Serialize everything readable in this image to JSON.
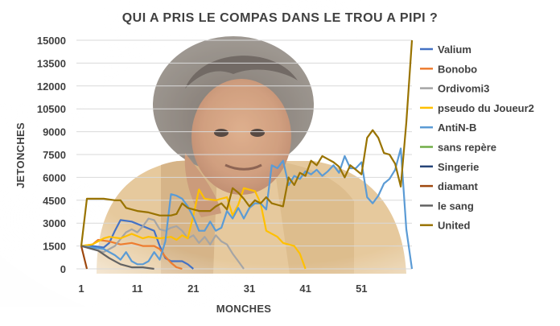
{
  "chart_data": {
    "type": "line",
    "title": "QUI A PRIS LE COMPAS DANS LE TROU A PIPI ?",
    "xlabel": "MONCHES",
    "ylabel": "JETONCHES",
    "ylim": [
      0,
      15000
    ],
    "yticks": [
      0,
      1500,
      3000,
      4500,
      6000,
      7500,
      9000,
      10500,
      12000,
      13500,
      15000
    ],
    "xlim": [
      1,
      60
    ],
    "xticks": [
      1,
      11,
      21,
      31,
      41,
      51
    ],
    "grid": "horizontal",
    "legend": "right",
    "background_image": "portrait-photo",
    "series": [
      {
        "name": "Valium",
        "color": "#4472C4",
        "points": [
          [
            1,
            1500
          ],
          [
            3,
            1500
          ],
          [
            5,
            1400
          ],
          [
            6,
            1700
          ],
          [
            7,
            2500
          ],
          [
            8,
            3200
          ],
          [
            10,
            3100
          ],
          [
            12,
            2800
          ],
          [
            14,
            2500
          ],
          [
            15,
            1500
          ],
          [
            16,
            700
          ],
          [
            17,
            500
          ],
          [
            19,
            500
          ],
          [
            20,
            300
          ],
          [
            21,
            0
          ]
        ]
      },
      {
        "name": "Bonobo",
        "color": "#ED7D31",
        "points": [
          [
            1,
            1500
          ],
          [
            3,
            1600
          ],
          [
            4,
            1900
          ],
          [
            6,
            1800
          ],
          [
            8,
            1600
          ],
          [
            10,
            1700
          ],
          [
            12,
            1500
          ],
          [
            14,
            1500
          ],
          [
            15,
            1300
          ],
          [
            16,
            800
          ],
          [
            17,
            400
          ],
          [
            18,
            100
          ],
          [
            19,
            0
          ]
        ]
      },
      {
        "name": "Ordivomi3",
        "color": "#A5A5A5",
        "points": [
          [
            1,
            1500
          ],
          [
            3,
            1300
          ],
          [
            5,
            1100
          ],
          [
            7,
            1500
          ],
          [
            9,
            2400
          ],
          [
            10,
            2600
          ],
          [
            11,
            2400
          ],
          [
            12,
            2800
          ],
          [
            13,
            3300
          ],
          [
            14,
            3200
          ],
          [
            15,
            2600
          ],
          [
            16,
            2500
          ],
          [
            17,
            2700
          ],
          [
            18,
            2800
          ],
          [
            19,
            2500
          ],
          [
            20,
            2000
          ],
          [
            21,
            2200
          ],
          [
            22,
            1700
          ],
          [
            23,
            2100
          ],
          [
            24,
            1600
          ],
          [
            25,
            2200
          ],
          [
            26,
            1800
          ],
          [
            27,
            1600
          ],
          [
            28,
            1000
          ],
          [
            29,
            500
          ],
          [
            30,
            0
          ]
        ]
      },
      {
        "name": "pseudo du Joueur2",
        "color": "#FFC000",
        "points": [
          [
            1,
            1500
          ],
          [
            3,
            1600
          ],
          [
            5,
            2000
          ],
          [
            6,
            2100
          ],
          [
            8,
            2000
          ],
          [
            10,
            2300
          ],
          [
            12,
            2000
          ],
          [
            13,
            2100
          ],
          [
            15,
            2000
          ],
          [
            17,
            2100
          ],
          [
            18,
            1900
          ],
          [
            19,
            2200
          ],
          [
            20,
            2000
          ],
          [
            21,
            3500
          ],
          [
            22,
            5200
          ],
          [
            23,
            4600
          ],
          [
            25,
            4500
          ],
          [
            27,
            4700
          ],
          [
            28,
            3500
          ],
          [
            29,
            4200
          ],
          [
            30,
            5300
          ],
          [
            32,
            5100
          ],
          [
            33,
            4300
          ],
          [
            34,
            2500
          ],
          [
            36,
            2100
          ],
          [
            37,
            1700
          ],
          [
            38,
            1600
          ],
          [
            39,
            1500
          ],
          [
            40,
            1000
          ],
          [
            41,
            0
          ]
        ]
      },
      {
        "name": "AntiN-B",
        "color": "#5B9BD5",
        "points": [
          [
            1,
            1500
          ],
          [
            3,
            1400
          ],
          [
            5,
            1300
          ],
          [
            7,
            900
          ],
          [
            8,
            600
          ],
          [
            9,
            1100
          ],
          [
            10,
            500
          ],
          [
            11,
            300
          ],
          [
            12,
            300
          ],
          [
            13,
            500
          ],
          [
            14,
            1100
          ],
          [
            15,
            600
          ],
          [
            16,
            1800
          ],
          [
            17,
            4900
          ],
          [
            18,
            4800
          ],
          [
            19,
            4600
          ],
          [
            20,
            4100
          ],
          [
            21,
            3400
          ],
          [
            22,
            2500
          ],
          [
            23,
            2500
          ],
          [
            24,
            3100
          ],
          [
            25,
            2500
          ],
          [
            26,
            2700
          ],
          [
            27,
            3800
          ],
          [
            28,
            3300
          ],
          [
            29,
            4000
          ],
          [
            30,
            3300
          ],
          [
            31,
            4000
          ],
          [
            32,
            4300
          ],
          [
            33,
            4300
          ],
          [
            34,
            3900
          ],
          [
            35,
            6800
          ],
          [
            36,
            6600
          ],
          [
            37,
            7100
          ],
          [
            38,
            5500
          ],
          [
            39,
            6100
          ],
          [
            40,
            5900
          ],
          [
            41,
            6400
          ],
          [
            42,
            6200
          ],
          [
            43,
            6500
          ],
          [
            44,
            6100
          ],
          [
            45,
            6400
          ],
          [
            46,
            6800
          ],
          [
            47,
            6300
          ],
          [
            48,
            7400
          ],
          [
            49,
            6600
          ],
          [
            50,
            6600
          ],
          [
            51,
            7000
          ],
          [
            52,
            4700
          ],
          [
            53,
            4300
          ],
          [
            54,
            4800
          ],
          [
            55,
            5600
          ],
          [
            56,
            5900
          ],
          [
            57,
            6500
          ],
          [
            58,
            7900
          ],
          [
            59,
            2600
          ],
          [
            60,
            0
          ]
        ]
      },
      {
        "name": "sans repère",
        "color": "#70AD47",
        "points": []
      },
      {
        "name": "Singerie",
        "color": "#264478",
        "points": []
      },
      {
        "name": "diamant",
        "color": "#9E480E",
        "points": [
          [
            1,
            1500
          ],
          [
            2,
            0
          ]
        ]
      },
      {
        "name": "le sang",
        "color": "#636363",
        "points": [
          [
            1,
            1500
          ],
          [
            4,
            1200
          ],
          [
            6,
            700
          ],
          [
            8,
            300
          ],
          [
            10,
            100
          ],
          [
            12,
            100
          ],
          [
            14,
            0
          ]
        ]
      },
      {
        "name": "United",
        "color": "#997300",
        "points": [
          [
            1,
            1500
          ],
          [
            2,
            4600
          ],
          [
            3,
            4600
          ],
          [
            5,
            4600
          ],
          [
            7,
            4500
          ],
          [
            8,
            4500
          ],
          [
            9,
            4000
          ],
          [
            11,
            3800
          ],
          [
            13,
            3700
          ],
          [
            15,
            3500
          ],
          [
            16,
            3500
          ],
          [
            17,
            3500
          ],
          [
            18,
            3600
          ],
          [
            19,
            4300
          ],
          [
            20,
            4000
          ],
          [
            22,
            3800
          ],
          [
            24,
            3800
          ],
          [
            25,
            4100
          ],
          [
            26,
            4300
          ],
          [
            27,
            3900
          ],
          [
            28,
            5300
          ],
          [
            29,
            5000
          ],
          [
            30,
            4600
          ],
          [
            31,
            4100
          ],
          [
            32,
            4500
          ],
          [
            33,
            4300
          ],
          [
            34,
            4700
          ],
          [
            35,
            4300
          ],
          [
            36,
            4200
          ],
          [
            37,
            4100
          ],
          [
            38,
            6000
          ],
          [
            39,
            5500
          ],
          [
            40,
            6300
          ],
          [
            41,
            6100
          ],
          [
            42,
            7100
          ],
          [
            43,
            6800
          ],
          [
            44,
            7400
          ],
          [
            45,
            7200
          ],
          [
            46,
            7000
          ],
          [
            47,
            6700
          ],
          [
            48,
            6000
          ],
          [
            49,
            6800
          ],
          [
            50,
            6500
          ],
          [
            51,
            6200
          ],
          [
            52,
            8600
          ],
          [
            53,
            9100
          ],
          [
            54,
            8600
          ],
          [
            55,
            7600
          ],
          [
            56,
            7500
          ],
          [
            57,
            6900
          ],
          [
            58,
            5400
          ],
          [
            59,
            9600
          ],
          [
            60,
            15000
          ]
        ]
      }
    ]
  }
}
